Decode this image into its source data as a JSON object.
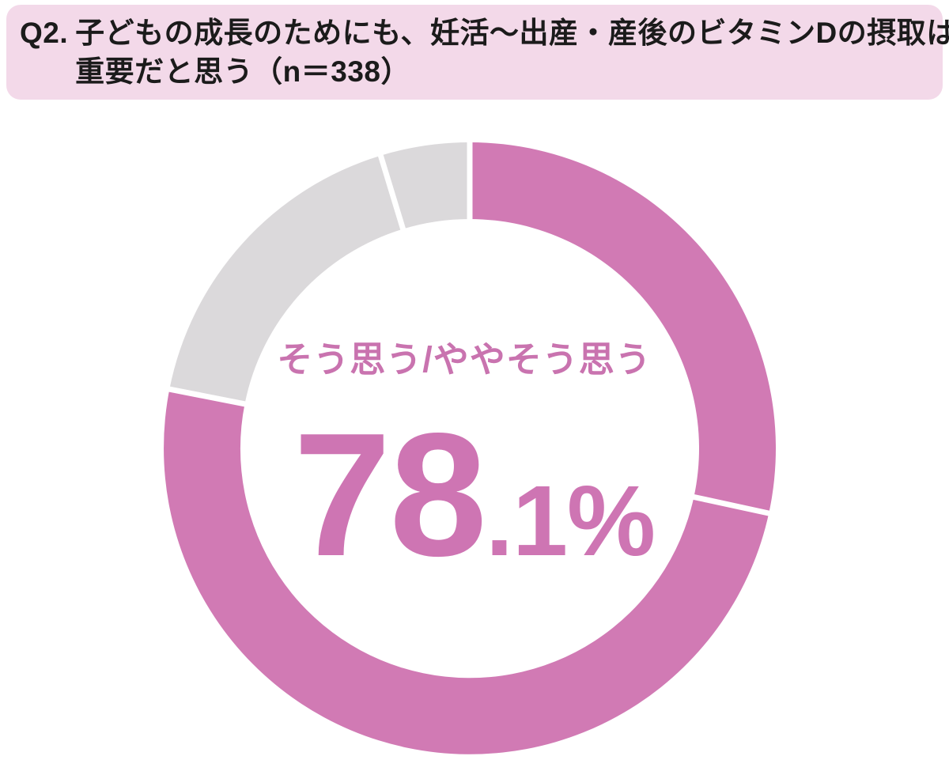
{
  "header": {
    "q_label": "Q2.",
    "line1": "子どもの成長のためにも、妊活〜出産・産後のビタミンDの摂取は",
    "line2": "重要だと思う（n＝338）",
    "bg_color": "#f3d9e9",
    "text_color": "#1b1b1b"
  },
  "chart": {
    "center_label": "そう思う/ややそう思う",
    "value_main": "78",
    "value_suffix": ".1%",
    "accent_color": "#d17ab4",
    "muted_color": "#dbd9db"
  },
  "chart_data": {
    "type": "pie",
    "donut": true,
    "title": "Q2. 子どもの成長のためにも、妊活〜出産・産後のビタミンDの摂取は重要だと思う（n＝338）",
    "sample_size": 338,
    "start_angle_deg": 0,
    "direction": "clockwise",
    "center_label": "そう思う/ややそう思う",
    "center_value_pct": 78.1,
    "segments": [
      {
        "label": "そう思う",
        "value": 28.4,
        "color": "#d17ab4"
      },
      {
        "label": "ややそう思う",
        "value": 49.7,
        "color": "#d17ab4"
      },
      {
        "label": "",
        "value": 17.2,
        "color": "#dbd9db"
      },
      {
        "label": "",
        "value": 4.7,
        "color": "#dbd9db"
      }
    ],
    "highlight": {
      "label": "そう思う/ややそう思う",
      "value": 78.1,
      "unit": "%"
    },
    "legend": "none",
    "grid": false
  }
}
